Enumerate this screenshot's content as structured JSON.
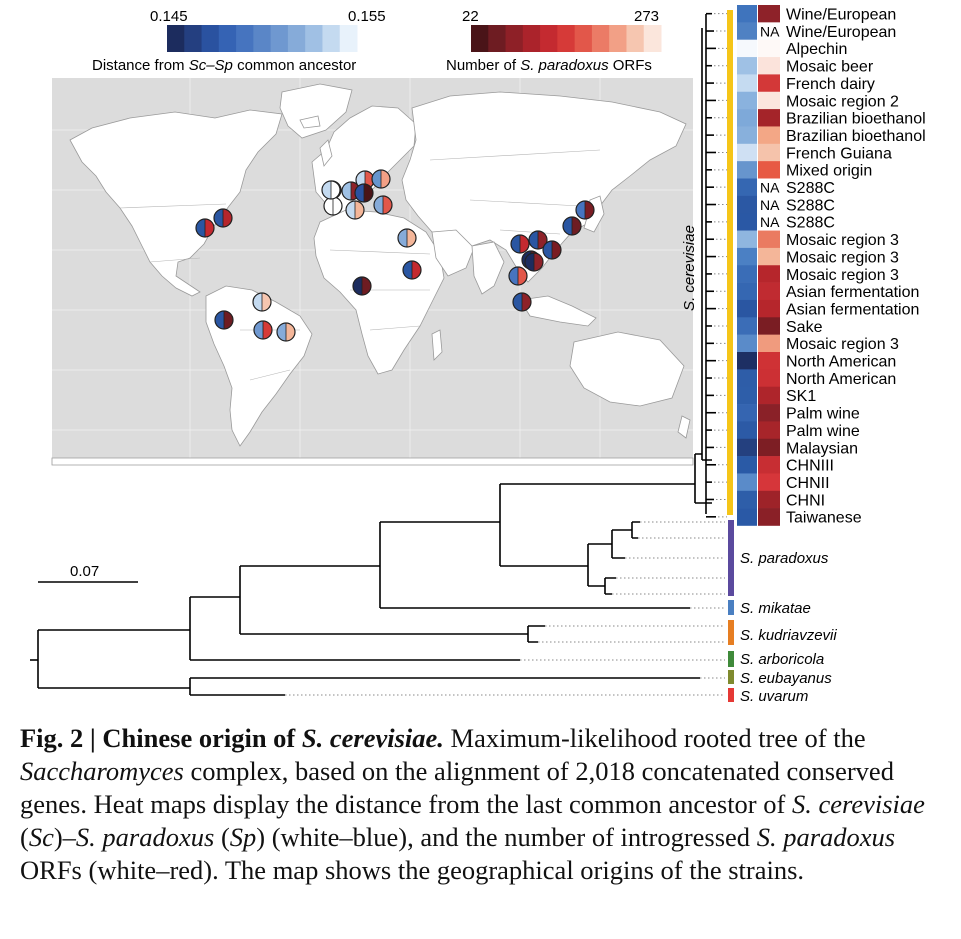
{
  "legend_distance": {
    "min_label": "0.145",
    "max_label": "0.155",
    "title_prefix": "Distance from ",
    "title_italic": "Sc–Sp",
    "title_suffix": " common ancestor",
    "colors": [
      "#1c2c5e",
      "#243f80",
      "#2a52a0",
      "#3563b4",
      "#4674bf",
      "#5a86c7",
      "#6f98d0",
      "#86abd9",
      "#a0c0e4",
      "#c4daf0",
      "#e8f2fb"
    ]
  },
  "legend_orfs": {
    "min_label": "22",
    "max_label": "273",
    "title_prefix": "Number of ",
    "title_italic": "S. paradoxus",
    "title_suffix": " ORFs",
    "colors": [
      "#4a1418",
      "#6e1c22",
      "#8e2027",
      "#ab232b",
      "#c42a30",
      "#d63a38",
      "#e2574a",
      "#eb7b66",
      "#f2a086",
      "#f6c6b0",
      "#fbe6dc"
    ]
  },
  "strain_labels": [
    "Wine/European",
    "Wine/European",
    "Alpechin",
    "Mosaic beer",
    "French dairy",
    "Mosaic region 2",
    "Brazilian bioethanol",
    "Brazilian bioethanol",
    "French Guiana",
    "Mixed origin",
    "S288C",
    "S288C",
    "S288C",
    "Mosaic region 3",
    "Mosaic region 3",
    "Mosaic region 3",
    "Asian fermentation",
    "Asian fermentation",
    "Sake",
    "Mosaic region 3",
    "North American",
    "North American",
    "SK1",
    "Palm wine",
    "Palm wine",
    "Malaysian",
    "CHNIII",
    "CHNII",
    "CHNI",
    "Taiwanese"
  ],
  "na_label": "NA",
  "na_rows": [
    1,
    10,
    11,
    12
  ],
  "heat_blue": [
    "#3f74bd",
    "#4f81c3",
    "#f6f9fd",
    "#9fc1e5",
    "#c5dbf1",
    "#8ab2de",
    "#7ea9d9",
    "#88b0dc",
    "#cfe0f3",
    "#6795cd",
    "#3567b2",
    "#2b58a4",
    "#2a58a5",
    "#8fb6df",
    "#4b80c4",
    "#3a6db7",
    "#3567b2",
    "#2a56a2",
    "#3b6db7",
    "#5a8bc9",
    "#1d2f63",
    "#2e5da8",
    "#2e5ea9",
    "#3565b1",
    "#2c5aa6",
    "#24407f",
    "#2a5aa6",
    "#5a8bc9",
    "#2e5ea9",
    "#2a59a6"
  ],
  "heat_red": [
    "#8e2229",
    "#fefefe",
    "#fef9f7",
    "#fbe3db",
    "#d33838",
    "#fbe6de",
    "#a42429",
    "#f3a786",
    "#f5c3ab",
    "#e75a44",
    "#ffffff",
    "#ffffff",
    "#ffffff",
    "#ea7b61",
    "#f4b699",
    "#b6262c",
    "#c02b31",
    "#b6262c",
    "#7a1d23",
    "#f09b7e",
    "#cf3235",
    "#cc3034",
    "#ae252b",
    "#8a2128",
    "#a7252a",
    "#7d1e24",
    "#c72e33",
    "#d6363a",
    "#9e2329",
    "#8a2027"
  ],
  "species_clade_label": "S. cerevisiae",
  "species": [
    {
      "name": "S. paradoxus",
      "color": "#5b4a9e"
    },
    {
      "name": "S. mikatae",
      "color": "#4a7fc1"
    },
    {
      "name": "S. kudriavzevii",
      "color": "#e67e22"
    },
    {
      "name": "S. arboricola",
      "color": "#3f8a3a"
    },
    {
      "name": "S. eubayanus",
      "color": "#7f8a2e"
    },
    {
      "name": "S. uvarum",
      "color": "#e53935"
    }
  ],
  "cerevisiae_bar_color": "#f5c518",
  "scale_bar_label": "0.07",
  "map_colors": {
    "ocean": "#dcdcdc",
    "land": "#ffffff",
    "border": "#9a9a9a"
  },
  "map_markers": [
    {
      "name": "marker-north-america-1",
      "a": "#2a56a2",
      "b": "#c42a30"
    },
    {
      "name": "marker-north-america-2",
      "a": "#2a56a2",
      "b": "#b6262c"
    },
    {
      "name": "marker-europe-1",
      "a": "#3567b2",
      "b": "#d63a38"
    },
    {
      "name": "marker-europe-2",
      "a": "#9fc1e5",
      "b": "#8e2229"
    },
    {
      "name": "marker-europe-3",
      "a": "#c4daf0",
      "b": "#e2574a"
    },
    {
      "name": "marker-europe-4",
      "a": "#6795cd",
      "b": "#f2a086"
    },
    {
      "name": "marker-europe-5",
      "a": "#ffffff",
      "b": "#ffffff"
    },
    {
      "name": "marker-europe-6",
      "a": "#86abd9",
      "b": "#e2574a"
    },
    {
      "name": "marker-europe-7",
      "a": "#c4daf0",
      "b": "#f4b699"
    },
    {
      "name": "marker-europe-8",
      "a": "#2a52a0",
      "b": "#4a1418"
    },
    {
      "name": "marker-europe-9",
      "a": "#c4daf0",
      "b": "#ffffff"
    },
    {
      "name": "marker-africa-east",
      "a": "#86abd9",
      "b": "#f4b699"
    },
    {
      "name": "marker-africa-sudan",
      "a": "#2a56a2",
      "b": "#c42a30"
    },
    {
      "name": "marker-africa-west",
      "a": "#1c2c5e",
      "b": "#6e1c22"
    },
    {
      "name": "marker-south-america-1",
      "a": "#c4daf0",
      "b": "#f6c6b0"
    },
    {
      "name": "marker-south-america-2",
      "a": "#2a56a2",
      "b": "#6e1c22"
    },
    {
      "name": "marker-south-america-3",
      "a": "#6f98d0",
      "b": "#d63a38"
    },
    {
      "name": "marker-south-america-4",
      "a": "#86abd9",
      "b": "#f4b699"
    },
    {
      "name": "marker-china-1",
      "a": "#2a56a2",
      "b": "#c42a30"
    },
    {
      "name": "marker-china-2",
      "a": "#2a56a2",
      "b": "#8e2229"
    },
    {
      "name": "marker-china-3",
      "a": "#1c2c5e",
      "b": "#7d1e24"
    },
    {
      "name": "marker-china-4",
      "a": "#2a56a2",
      "b": "#7a1d23"
    },
    {
      "name": "marker-china-5",
      "a": "#4674bf",
      "b": "#e2574a"
    },
    {
      "name": "marker-japan",
      "a": "#4674bf",
      "b": "#7a1d23"
    },
    {
      "name": "marker-taiwan",
      "a": "#2a56a2",
      "b": "#6e1c22"
    },
    {
      "name": "marker-korea",
      "a": "#2a56a2",
      "b": "#8e2229"
    },
    {
      "name": "marker-malaysia",
      "a": "#1c2c5e",
      "b": "#8e2229"
    }
  ],
  "caption": {
    "label": "Fig. 2 | ",
    "title_prefix": "Chinese origin of ",
    "title_italic": "S. cerevisiae.",
    "t1": " Maximum-likelihood rooted tree of the ",
    "t1_italic": "Saccharomyces",
    "t2": " complex, based on the alignment of 2,018 concatenated conserved genes. Heat maps display the distance from the last common ancestor of ",
    "t2_italic": "S. cerevisiae",
    "t3": " (",
    "t3_italic": "Sc",
    "t4": ")–",
    "t4_italic": "S. paradoxus",
    "t5": " (",
    "t5_italic": "Sp",
    "t6": ") (white–blue), and the number of introgressed ",
    "t6_italic": "S. paradoxus",
    "t7": " ORFs (white–red). The map shows the geographical origins of the strains."
  }
}
